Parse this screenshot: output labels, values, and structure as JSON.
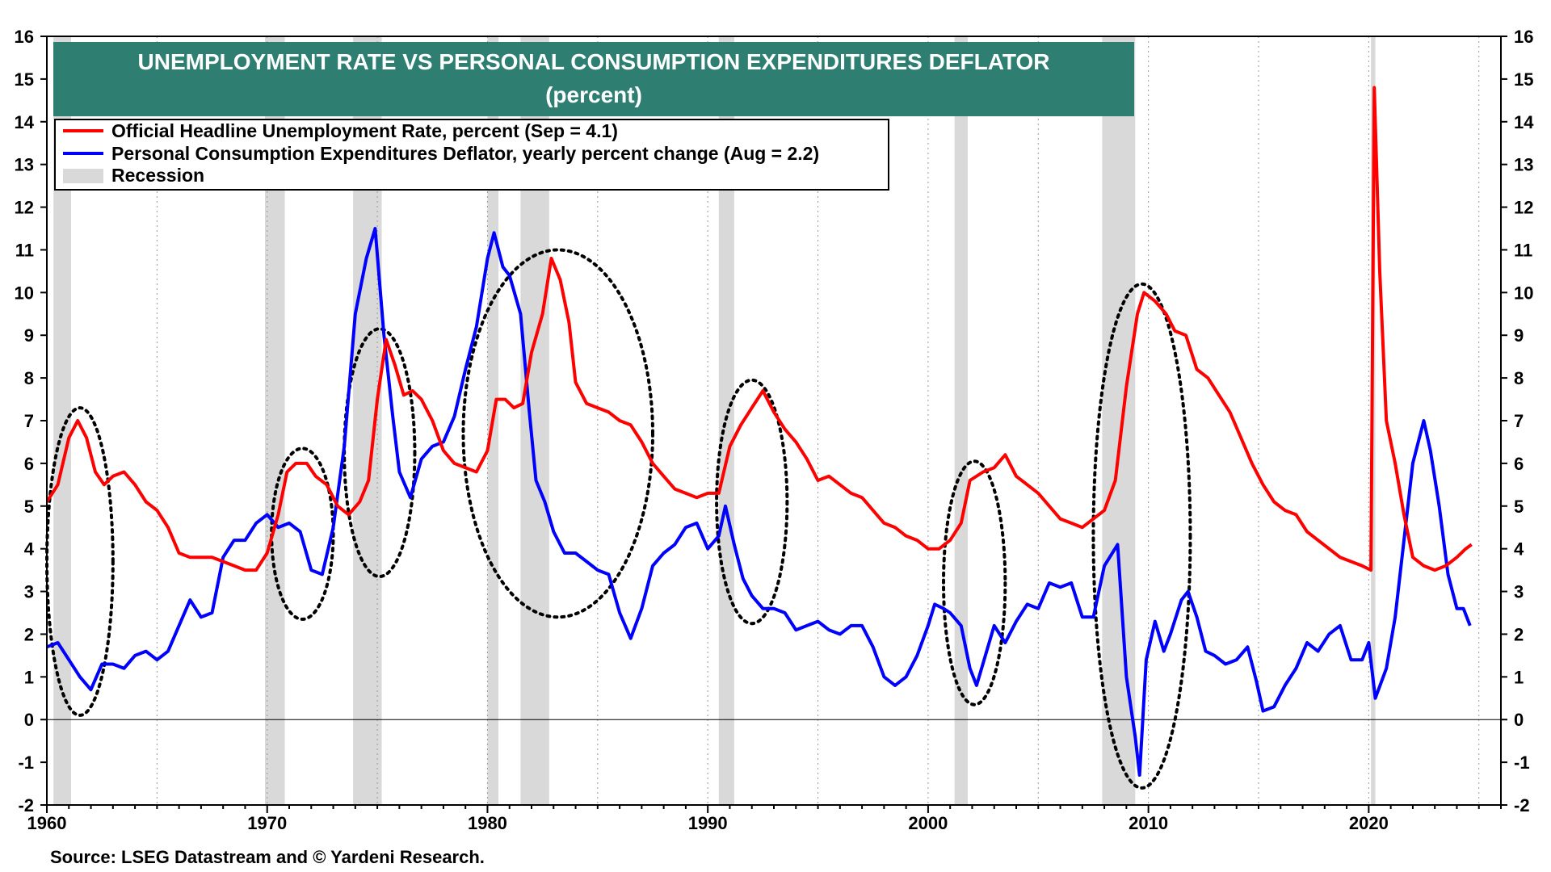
{
  "chart_data": {
    "type": "line",
    "title": "UNEMPLOYMENT RATE VS PERSONAL CONSUMPTION EXPENDITURES DEFLATOR",
    "subtitle": "(percent)",
    "source": "Source: LSEG Datastream and © Yardeni Research.",
    "xlim": [
      1960,
      2026
    ],
    "ylim": [
      -2,
      16
    ],
    "x_ticks": [
      1960,
      1970,
      1980,
      1990,
      2000,
      2010,
      2020
    ],
    "y_ticks": [
      -2,
      -1,
      0,
      1,
      2,
      3,
      4,
      5,
      6,
      7,
      8,
      9,
      10,
      11,
      12,
      13,
      14,
      15,
      16
    ],
    "grid": true,
    "legend_placement": "top-left",
    "recession_label": "Recession",
    "recessions": [
      [
        1960.3,
        1961.1
      ],
      [
        1969.9,
        1970.8
      ],
      [
        1973.9,
        1975.2
      ],
      [
        1980.0,
        1980.5
      ],
      [
        1981.5,
        1982.8
      ],
      [
        1990.5,
        1991.2
      ],
      [
        2001.2,
        2001.8
      ],
      [
        2007.9,
        2009.4
      ],
      [
        2020.1,
        2020.3
      ]
    ],
    "colors": {
      "unemployment": "#ff0000",
      "pce": "#0000ff",
      "recession": "#d9d9d9",
      "title_bg": "#2e7f72"
    },
    "series": [
      {
        "name": "Official Headline Unemployment Rate, percent (Sep = 4.1)",
        "points": [
          [
            1960.0,
            5.1
          ],
          [
            1960.5,
            5.5
          ],
          [
            1961.0,
            6.6
          ],
          [
            1961.4,
            7.0
          ],
          [
            1961.8,
            6.6
          ],
          [
            1962.2,
            5.8
          ],
          [
            1962.6,
            5.5
          ],
          [
            1963.0,
            5.7
          ],
          [
            1963.5,
            5.8
          ],
          [
            1964.0,
            5.5
          ],
          [
            1964.5,
            5.1
          ],
          [
            1965.0,
            4.9
          ],
          [
            1965.5,
            4.5
          ],
          [
            1966.0,
            3.9
          ],
          [
            1966.5,
            3.8
          ],
          [
            1967.0,
            3.8
          ],
          [
            1967.5,
            3.8
          ],
          [
            1968.0,
            3.7
          ],
          [
            1968.5,
            3.6
          ],
          [
            1969.0,
            3.5
          ],
          [
            1969.5,
            3.5
          ],
          [
            1970.0,
            3.9
          ],
          [
            1970.5,
            4.8
          ],
          [
            1970.9,
            5.8
          ],
          [
            1971.3,
            6.0
          ],
          [
            1971.8,
            6.0
          ],
          [
            1972.2,
            5.7
          ],
          [
            1972.7,
            5.5
          ],
          [
            1973.2,
            5.0
          ],
          [
            1973.7,
            4.8
          ],
          [
            1974.2,
            5.1
          ],
          [
            1974.6,
            5.6
          ],
          [
            1975.0,
            7.5
          ],
          [
            1975.4,
            8.9
          ],
          [
            1975.8,
            8.3
          ],
          [
            1976.2,
            7.6
          ],
          [
            1976.6,
            7.7
          ],
          [
            1977.0,
            7.5
          ],
          [
            1977.5,
            7.0
          ],
          [
            1978.0,
            6.3
          ],
          [
            1978.5,
            6.0
          ],
          [
            1979.0,
            5.9
          ],
          [
            1979.5,
            5.8
          ],
          [
            1980.0,
            6.3
          ],
          [
            1980.4,
            7.5
          ],
          [
            1980.8,
            7.5
          ],
          [
            1981.2,
            7.3
          ],
          [
            1981.6,
            7.4
          ],
          [
            1982.0,
            8.6
          ],
          [
            1982.5,
            9.5
          ],
          [
            1982.9,
            10.8
          ],
          [
            1983.3,
            10.3
          ],
          [
            1983.7,
            9.3
          ],
          [
            1984.0,
            7.9
          ],
          [
            1984.5,
            7.4
          ],
          [
            1985.0,
            7.3
          ],
          [
            1985.5,
            7.2
          ],
          [
            1986.0,
            7.0
          ],
          [
            1986.5,
            6.9
          ],
          [
            1987.0,
            6.5
          ],
          [
            1987.5,
            6.0
          ],
          [
            1988.0,
            5.7
          ],
          [
            1988.5,
            5.4
          ],
          [
            1989.0,
            5.3
          ],
          [
            1989.5,
            5.2
          ],
          [
            1990.0,
            5.3
          ],
          [
            1990.5,
            5.3
          ],
          [
            1991.0,
            6.4
          ],
          [
            1991.5,
            6.9
          ],
          [
            1992.0,
            7.3
          ],
          [
            1992.5,
            7.7
          ],
          [
            1993.0,
            7.2
          ],
          [
            1993.5,
            6.8
          ],
          [
            1994.0,
            6.5
          ],
          [
            1994.5,
            6.1
          ],
          [
            1995.0,
            5.6
          ],
          [
            1995.5,
            5.7
          ],
          [
            1996.0,
            5.5
          ],
          [
            1996.5,
            5.3
          ],
          [
            1997.0,
            5.2
          ],
          [
            1997.5,
            4.9
          ],
          [
            1998.0,
            4.6
          ],
          [
            1998.5,
            4.5
          ],
          [
            1999.0,
            4.3
          ],
          [
            1999.5,
            4.2
          ],
          [
            2000.0,
            4.0
          ],
          [
            2000.5,
            4.0
          ],
          [
            2001.0,
            4.2
          ],
          [
            2001.5,
            4.6
          ],
          [
            2001.9,
            5.6
          ],
          [
            2002.5,
            5.8
          ],
          [
            2003.0,
            5.9
          ],
          [
            2003.5,
            6.2
          ],
          [
            2004.0,
            5.7
          ],
          [
            2004.5,
            5.5
          ],
          [
            2005.0,
            5.3
          ],
          [
            2005.5,
            5.0
          ],
          [
            2006.0,
            4.7
          ],
          [
            2006.5,
            4.6
          ],
          [
            2007.0,
            4.5
          ],
          [
            2007.5,
            4.7
          ],
          [
            2008.0,
            4.9
          ],
          [
            2008.5,
            5.6
          ],
          [
            2009.0,
            7.8
          ],
          [
            2009.5,
            9.5
          ],
          [
            2009.8,
            10.0
          ],
          [
            2010.3,
            9.8
          ],
          [
            2010.8,
            9.5
          ],
          [
            2011.2,
            9.1
          ],
          [
            2011.7,
            9.0
          ],
          [
            2012.2,
            8.2
          ],
          [
            2012.7,
            8.0
          ],
          [
            2013.2,
            7.6
          ],
          [
            2013.7,
            7.2
          ],
          [
            2014.2,
            6.6
          ],
          [
            2014.7,
            6.0
          ],
          [
            2015.2,
            5.5
          ],
          [
            2015.7,
            5.1
          ],
          [
            2016.2,
            4.9
          ],
          [
            2016.7,
            4.8
          ],
          [
            2017.2,
            4.4
          ],
          [
            2017.7,
            4.2
          ],
          [
            2018.2,
            4.0
          ],
          [
            2018.7,
            3.8
          ],
          [
            2019.2,
            3.7
          ],
          [
            2019.7,
            3.6
          ],
          [
            2020.1,
            3.5
          ],
          [
            2020.25,
            14.8
          ],
          [
            2020.5,
            10.5
          ],
          [
            2020.8,
            7.0
          ],
          [
            2021.2,
            6.0
          ],
          [
            2021.6,
            4.8
          ],
          [
            2022.0,
            3.8
          ],
          [
            2022.5,
            3.6
          ],
          [
            2023.0,
            3.5
          ],
          [
            2023.5,
            3.6
          ],
          [
            2024.0,
            3.8
          ],
          [
            2024.4,
            4.0
          ],
          [
            2024.67,
            4.1
          ]
        ]
      },
      {
        "name": "Personal Consumption Expenditures Deflator, yearly percent change (Aug = 2.2)",
        "points": [
          [
            1960.0,
            1.7
          ],
          [
            1960.5,
            1.8
          ],
          [
            1961.0,
            1.4
          ],
          [
            1961.5,
            1.0
          ],
          [
            1962.0,
            0.7
          ],
          [
            1962.5,
            1.3
          ],
          [
            1963.0,
            1.3
          ],
          [
            1963.5,
            1.2
          ],
          [
            1964.0,
            1.5
          ],
          [
            1964.5,
            1.6
          ],
          [
            1965.0,
            1.4
          ],
          [
            1965.5,
            1.6
          ],
          [
            1966.0,
            2.2
          ],
          [
            1966.5,
            2.8
          ],
          [
            1967.0,
            2.4
          ],
          [
            1967.5,
            2.5
          ],
          [
            1968.0,
            3.8
          ],
          [
            1968.5,
            4.2
          ],
          [
            1969.0,
            4.2
          ],
          [
            1969.5,
            4.6
          ],
          [
            1970.0,
            4.8
          ],
          [
            1970.5,
            4.5
          ],
          [
            1971.0,
            4.6
          ],
          [
            1971.5,
            4.4
          ],
          [
            1972.0,
            3.5
          ],
          [
            1972.5,
            3.4
          ],
          [
            1973.0,
            4.5
          ],
          [
            1973.5,
            6.4
          ],
          [
            1974.0,
            9.5
          ],
          [
            1974.5,
            10.8
          ],
          [
            1974.9,
            11.5
          ],
          [
            1975.3,
            9.0
          ],
          [
            1975.7,
            7.1
          ],
          [
            1976.0,
            5.8
          ],
          [
            1976.5,
            5.2
          ],
          [
            1977.0,
            6.1
          ],
          [
            1977.5,
            6.4
          ],
          [
            1978.0,
            6.5
          ],
          [
            1978.5,
            7.1
          ],
          [
            1979.0,
            8.2
          ],
          [
            1979.5,
            9.2
          ],
          [
            1980.0,
            10.8
          ],
          [
            1980.3,
            11.4
          ],
          [
            1980.7,
            10.6
          ],
          [
            1981.0,
            10.4
          ],
          [
            1981.5,
            9.5
          ],
          [
            1981.9,
            7.2
          ],
          [
            1982.2,
            5.6
          ],
          [
            1982.6,
            5.1
          ],
          [
            1983.0,
            4.4
          ],
          [
            1983.5,
            3.9
          ],
          [
            1984.0,
            3.9
          ],
          [
            1984.5,
            3.7
          ],
          [
            1985.0,
            3.5
          ],
          [
            1985.5,
            3.4
          ],
          [
            1986.0,
            2.5
          ],
          [
            1986.5,
            1.9
          ],
          [
            1987.0,
            2.6
          ],
          [
            1987.5,
            3.6
          ],
          [
            1988.0,
            3.9
          ],
          [
            1988.5,
            4.1
          ],
          [
            1989.0,
            4.5
          ],
          [
            1989.5,
            4.6
          ],
          [
            1990.0,
            4.0
          ],
          [
            1990.5,
            4.3
          ],
          [
            1990.8,
            5.0
          ],
          [
            1991.2,
            4.1
          ],
          [
            1991.6,
            3.3
          ],
          [
            1992.0,
            2.9
          ],
          [
            1992.5,
            2.6
          ],
          [
            1993.0,
            2.6
          ],
          [
            1993.5,
            2.5
          ],
          [
            1994.0,
            2.1
          ],
          [
            1994.5,
            2.2
          ],
          [
            1995.0,
            2.3
          ],
          [
            1995.5,
            2.1
          ],
          [
            1996.0,
            2.0
          ],
          [
            1996.5,
            2.2
          ],
          [
            1997.0,
            2.2
          ],
          [
            1997.5,
            1.7
          ],
          [
            1998.0,
            1.0
          ],
          [
            1998.5,
            0.8
          ],
          [
            1999.0,
            1.0
          ],
          [
            1999.5,
            1.5
          ],
          [
            2000.0,
            2.2
          ],
          [
            2000.3,
            2.7
          ],
          [
            2000.7,
            2.6
          ],
          [
            2001.0,
            2.5
          ],
          [
            2001.5,
            2.2
          ],
          [
            2001.9,
            1.2
          ],
          [
            2002.2,
            0.8
          ],
          [
            2002.6,
            1.5
          ],
          [
            2003.0,
            2.2
          ],
          [
            2003.5,
            1.8
          ],
          [
            2004.0,
            2.3
          ],
          [
            2004.5,
            2.7
          ],
          [
            2005.0,
            2.6
          ],
          [
            2005.5,
            3.2
          ],
          [
            2006.0,
            3.1
          ],
          [
            2006.5,
            3.2
          ],
          [
            2007.0,
            2.4
          ],
          [
            2007.5,
            2.4
          ],
          [
            2008.0,
            3.6
          ],
          [
            2008.6,
            4.1
          ],
          [
            2009.0,
            1.0
          ],
          [
            2009.4,
            -0.4
          ],
          [
            2009.6,
            -1.3
          ],
          [
            2009.9,
            1.4
          ],
          [
            2010.3,
            2.3
          ],
          [
            2010.7,
            1.6
          ],
          [
            2011.0,
            2.0
          ],
          [
            2011.5,
            2.8
          ],
          [
            2011.8,
            3.0
          ],
          [
            2012.2,
            2.4
          ],
          [
            2012.6,
            1.6
          ],
          [
            2013.0,
            1.5
          ],
          [
            2013.5,
            1.3
          ],
          [
            2014.0,
            1.4
          ],
          [
            2014.5,
            1.7
          ],
          [
            2014.9,
            0.9
          ],
          [
            2015.2,
            0.2
          ],
          [
            2015.7,
            0.3
          ],
          [
            2016.2,
            0.8
          ],
          [
            2016.7,
            1.2
          ],
          [
            2017.2,
            1.8
          ],
          [
            2017.7,
            1.6
          ],
          [
            2018.2,
            2.0
          ],
          [
            2018.7,
            2.2
          ],
          [
            2019.2,
            1.4
          ],
          [
            2019.7,
            1.4
          ],
          [
            2020.0,
            1.8
          ],
          [
            2020.3,
            0.5
          ],
          [
            2020.8,
            1.2
          ],
          [
            2021.2,
            2.4
          ],
          [
            2021.6,
            4.2
          ],
          [
            2022.0,
            6.0
          ],
          [
            2022.5,
            7.0
          ],
          [
            2022.8,
            6.3
          ],
          [
            2023.2,
            5.0
          ],
          [
            2023.6,
            3.4
          ],
          [
            2024.0,
            2.6
          ],
          [
            2024.3,
            2.6
          ],
          [
            2024.6,
            2.2
          ]
        ]
      }
    ],
    "annotations": "dotted ellipses circling turning points"
  }
}
